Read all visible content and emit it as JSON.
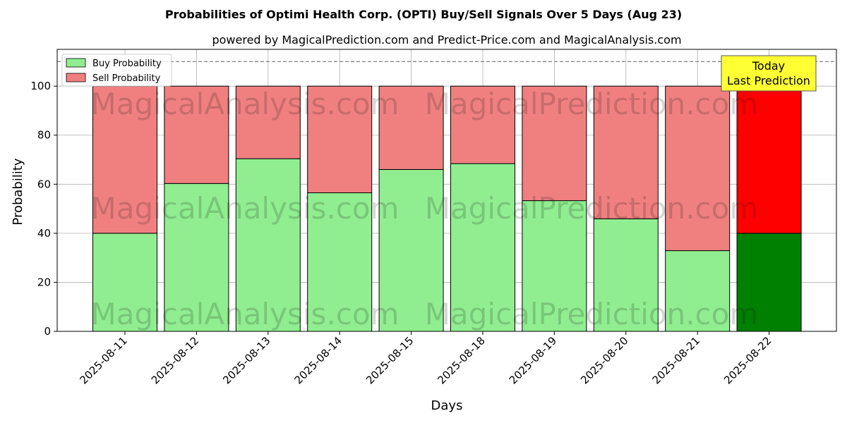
{
  "chart_data": {
    "type": "bar",
    "stacked": true,
    "title": "Probabilities of Optimi Health Corp. (OPTI) Buy/Sell Signals Over 5 Days (Aug 23)",
    "subtitle": "powered by MagicalPrediction.com and Predict-Price.com and MagicalAnalysis.com",
    "xlabel": "Days",
    "ylabel": "Probability",
    "ylim": [
      0,
      115
    ],
    "yticks": [
      0,
      20,
      40,
      60,
      80,
      100
    ],
    "grid": true,
    "legend_position": "top-left",
    "reference_line": 110,
    "categories": [
      "2025-08-11",
      "2025-08-12",
      "2025-08-13",
      "2025-08-14",
      "2025-08-15",
      "2025-08-18",
      "2025-08-19",
      "2025-08-20",
      "2025-08-21",
      "2025-08-22"
    ],
    "series": [
      {
        "name": "Buy Probability",
        "values": [
          40.0,
          60.3,
          70.4,
          56.5,
          66.0,
          68.4,
          53.3,
          45.9,
          32.9,
          40.0
        ],
        "color": "#90ee90",
        "highlight_color": "#008000"
      },
      {
        "name": "Sell Probability",
        "values": [
          60.0,
          39.7,
          29.6,
          43.5,
          34.0,
          31.6,
          46.7,
          54.1,
          67.1,
          60.0
        ],
        "color": "#f08080",
        "highlight_color": "#ff0000"
      }
    ],
    "highlight_index": 9,
    "annotation": {
      "line1": "Today",
      "line2": "Last Prediction",
      "background": "#ffff33"
    },
    "watermarks": [
      "MagicalAnalysis.com",
      "MagicalPrediction.com"
    ]
  }
}
